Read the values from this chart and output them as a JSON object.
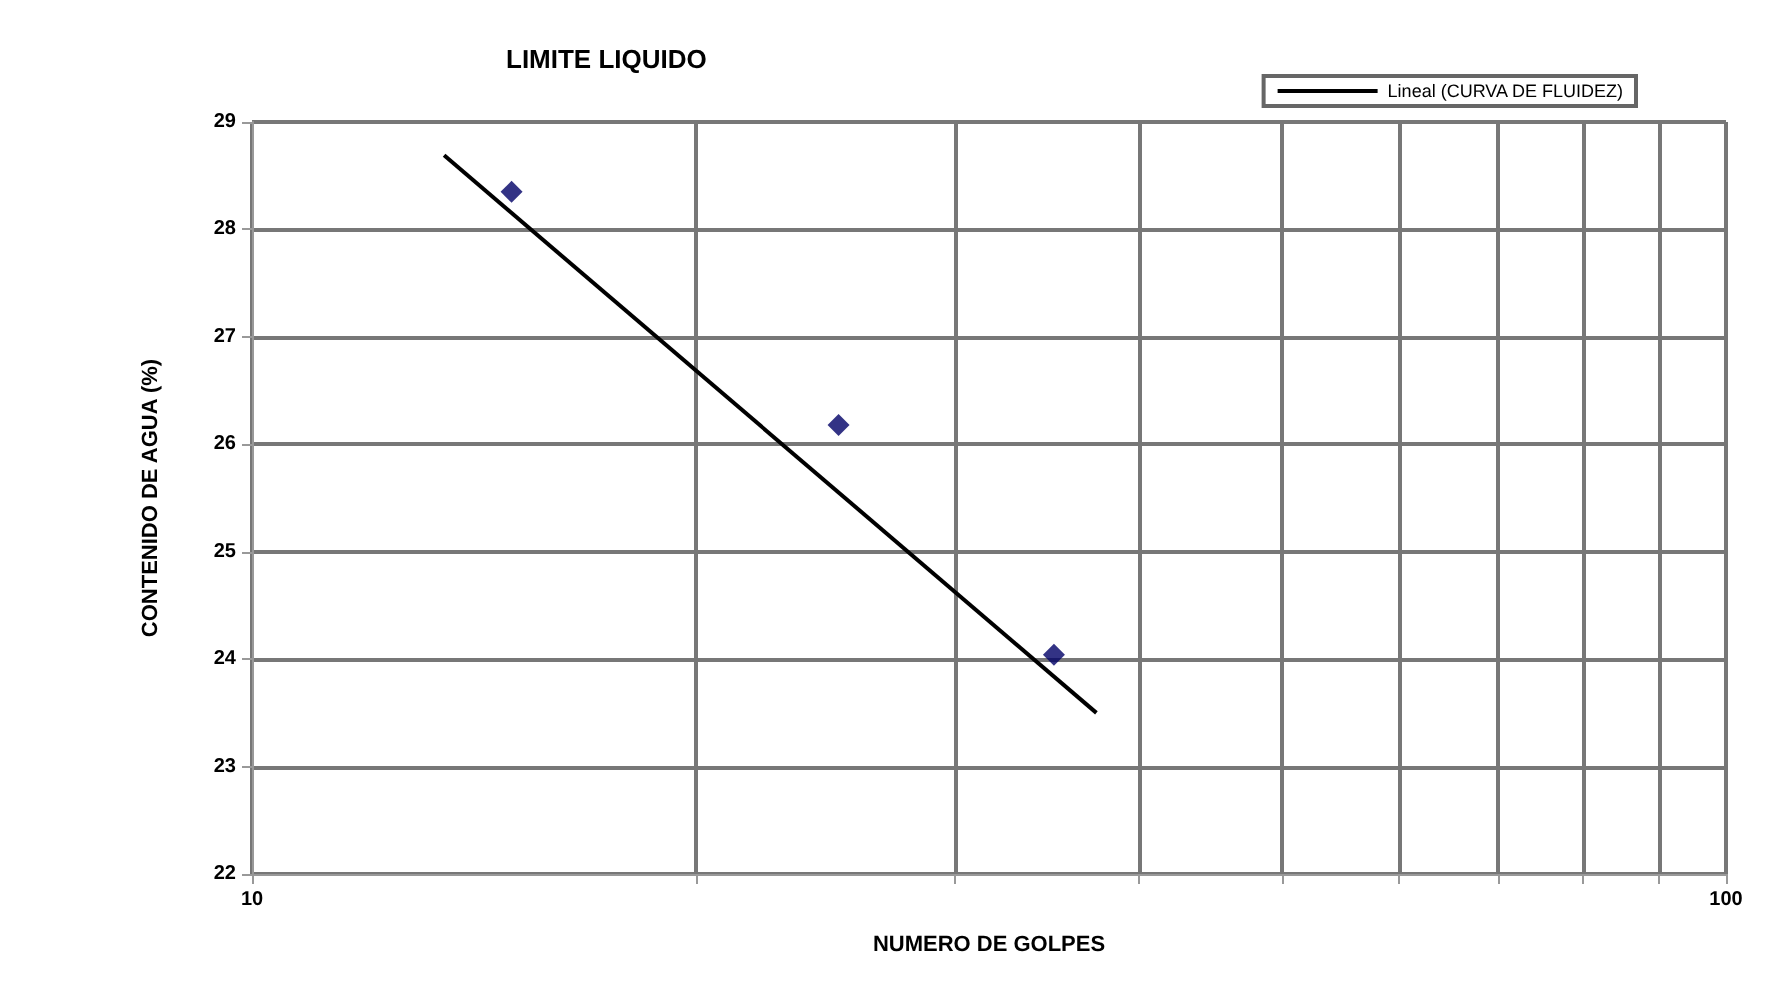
{
  "chart_data": {
    "type": "scatter",
    "title": "LIMITE LIQUIDO",
    "xlabel": "NUMERO DE GOLPES",
    "ylabel": "CONTENIDO DE AGUA (%)",
    "log": "x",
    "xlim": [
      10,
      100
    ],
    "xticks": [
      10,
      {
        "value": 20,
        "label": null
      },
      {
        "value": 30,
        "label": null
      },
      {
        "value": 40,
        "label": null
      },
      {
        "value": 50,
        "label": null
      },
      {
        "value": 60,
        "label": null
      },
      {
        "value": 70,
        "label": null
      },
      {
        "value": 80,
        "label": null
      },
      {
        "value": 90,
        "label": null
      },
      100
    ],
    "ylim": [
      22,
      29
    ],
    "yticks": [
      22,
      23,
      24,
      25,
      26,
      27,
      28,
      29
    ],
    "grid": true,
    "legend": "top right",
    "marker": "diamond",
    "series": [
      {
        "color": "#000066",
        "x": [
          15,
          25,
          35
        ],
        "values": [
          28.35,
          26.18,
          24.04
        ]
      },
      {
        "type": "line",
        "name": "Lineal (CURVA DE FLUIDEZ)",
        "color": "#000000",
        "marker": "none",
        "line_style": "solid",
        "x": [
          13.5,
          37.4
        ],
        "values": [
          28.69,
          23.5
        ]
      }
    ]
  }
}
